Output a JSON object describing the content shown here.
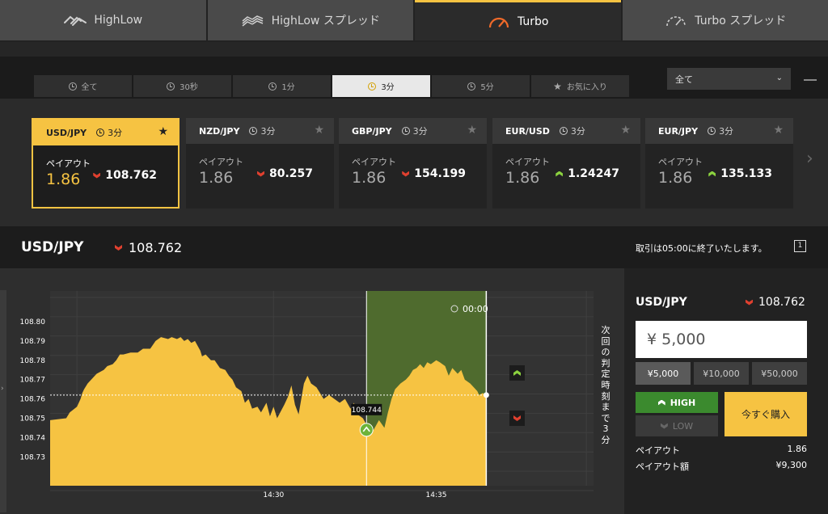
{
  "product_tabs": [
    {
      "label": "HighLow",
      "icon": "highlow-icon",
      "active": false
    },
    {
      "label": "HighLow スプレッド",
      "icon": "highlow-spread-icon",
      "active": false
    },
    {
      "label": "Turbo",
      "icon": "speedometer-icon",
      "active": true
    },
    {
      "label": "Turbo スプレッド",
      "icon": "speedometer-outline-icon",
      "active": false
    }
  ],
  "time_tabs": [
    {
      "label": "全て",
      "icon": "clock-icon",
      "active": false
    },
    {
      "label": "30秒",
      "icon": "clock-icon",
      "active": false
    },
    {
      "label": "1分",
      "icon": "clock-icon",
      "active": false
    },
    {
      "label": "3分",
      "icon": "clock-icon",
      "active": true
    },
    {
      "label": "5分",
      "icon": "clock-icon",
      "active": false
    },
    {
      "label": "お気に入り",
      "icon": "star-icon",
      "active": false
    }
  ],
  "filter": {
    "selected": "全て"
  },
  "assets": [
    {
      "pair": "USD/JPY",
      "duration": "3分",
      "payout_label": "ペイアウト",
      "payout": "1.86",
      "rate": "108.762",
      "direction": "down",
      "selected": true
    },
    {
      "pair": "NZD/JPY",
      "duration": "3分",
      "payout_label": "ペイアウト",
      "payout": "1.86",
      "rate": "80.257",
      "direction": "down",
      "selected": false
    },
    {
      "pair": "GBP/JPY",
      "duration": "3分",
      "payout_label": "ペイアウト",
      "payout": "1.86",
      "rate": "154.199",
      "direction": "down",
      "selected": false
    },
    {
      "pair": "EUR/USD",
      "duration": "3分",
      "payout_label": "ペイアウト",
      "payout": "1.86",
      "rate": "1.24247",
      "direction": "up",
      "selected": false
    },
    {
      "pair": "EUR/JPY",
      "duration": "3分",
      "payout_label": "ペイアウト",
      "payout": "1.86",
      "rate": "135.133",
      "direction": "up",
      "selected": false
    }
  ],
  "header": {
    "pair": "USD/JPY",
    "rate": "108.762",
    "message": "取引は05:00に終了いたします。",
    "window_icon_label": "1"
  },
  "countdown_vertical": "次回の判定時刻まで3分",
  "chart_data": {
    "type": "area",
    "title": "",
    "xlabel": "",
    "ylabel": "",
    "x_ticks": [
      "14:30",
      "14:35"
    ],
    "y_ticks": [
      "108.80",
      "108.79",
      "108.78",
      "108.77",
      "108.76",
      "108.75",
      "108.74",
      "108.73"
    ],
    "ylim": [
      108.72,
      108.81
    ],
    "grid": true,
    "series_color": "#f6c342",
    "current_rate": 108.762,
    "entry_marker": {
      "label": "108.744",
      "value": 108.744,
      "direction": "up"
    },
    "timer_label": "00:00",
    "highlight_color": "#4f6b2e",
    "points_minutes": [
      14.0,
      14.45,
      14.55,
      14.75,
      14.85,
      14.9,
      14.95,
      15.05,
      15.2,
      15.3,
      15.5,
      15.6,
      15.75,
      15.85,
      15.95,
      16.05,
      16.25,
      16.45,
      16.6,
      16.8,
      16.95,
      17.1,
      17.3,
      17.4,
      17.55,
      17.65,
      17.75,
      17.85,
      17.95,
      18.05,
      18.2,
      18.25,
      18.35,
      18.5,
      18.6,
      18.75,
      18.9,
      19.0,
      19.1,
      19.2,
      19.35,
      19.45,
      19.55,
      19.65,
      19.8,
      19.9,
      20.05,
      20.15,
      20.25,
      20.35,
      20.55,
      20.65,
      20.75,
      20.85,
      20.95,
      21.1,
      21.2,
      21.3,
      21.45,
      21.55,
      21.65,
      21.8,
      21.95,
      22.1,
      22.25,
      22.4,
      22.5,
      22.6,
      22.75,
      22.9,
      23.05,
      23.2,
      23.35,
      23.45,
      23.55,
      23.65,
      23.8,
      23.95,
      24.05,
      24.15,
      24.25,
      24.35,
      24.45,
      24.55,
      24.65,
      24.8,
      24.9,
      25.05,
      25.15,
      25.25,
      25.4,
      25.5,
      25.6,
      25.75,
      25.85,
      25.95,
      26.0,
      26.1,
      26.2
    ],
    "values": [
      108.749,
      108.75,
      108.753,
      108.756,
      108.76,
      108.763,
      108.765,
      108.768,
      108.771,
      108.773,
      108.775,
      108.777,
      108.778,
      108.78,
      108.783,
      108.783,
      108.784,
      108.784,
      108.786,
      108.786,
      108.79,
      108.792,
      108.791,
      108.792,
      108.791,
      108.792,
      108.79,
      108.791,
      108.789,
      108.79,
      108.785,
      108.782,
      108.783,
      108.78,
      108.78,
      108.776,
      108.775,
      108.772,
      108.77,
      108.766,
      108.764,
      108.758,
      108.76,
      108.755,
      108.756,
      108.753,
      108.758,
      108.751,
      108.756,
      108.75,
      108.757,
      108.761,
      108.767,
      108.757,
      108.752,
      108.768,
      108.772,
      108.768,
      108.766,
      108.763,
      108.76,
      108.762,
      108.76,
      108.758,
      108.76,
      108.755,
      108.758,
      108.752,
      108.75,
      108.745,
      108.744,
      108.749,
      108.745,
      108.753,
      108.76,
      108.765,
      108.768,
      108.77,
      108.772,
      108.775,
      108.776,
      108.778,
      108.776,
      108.779,
      108.778,
      108.78,
      108.779,
      108.777,
      108.772,
      108.776,
      108.773,
      108.775,
      108.77,
      108.768,
      108.766,
      108.764,
      108.762,
      108.763,
      108.762
    ]
  },
  "trade": {
    "pair": "USD/JPY",
    "rate": "108.762",
    "amount": "¥ 5,000",
    "amount_buttons": [
      {
        "label": "¥5,000",
        "active": true
      },
      {
        "label": "¥10,000",
        "active": false
      },
      {
        "label": "¥50,000",
        "active": false
      }
    ],
    "high_label": "HIGH",
    "low_label": "LOW",
    "buy_label": "今すぐ購入",
    "payout_label": "ペイアウト",
    "payout_value": "1.86",
    "payout_amount_label": "ペイアウト額",
    "payout_amount_value": "¥9,300"
  }
}
